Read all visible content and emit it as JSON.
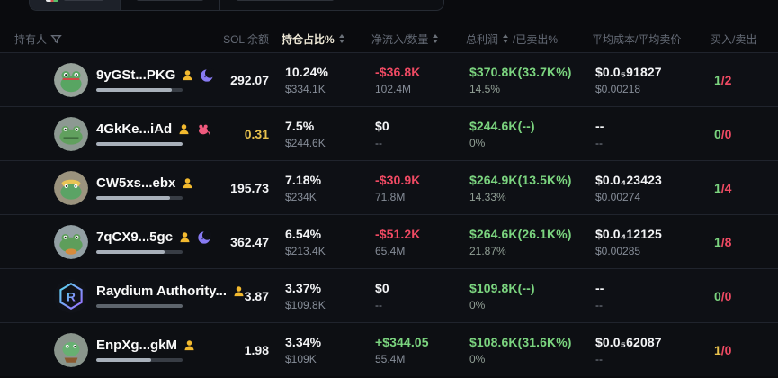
{
  "colors": {
    "green": "#7bd47f",
    "red": "#ef4a63",
    "yellow": "#e7c14d",
    "muted_text": "#868d98",
    "header_text": "#656b76",
    "active_header_text": "#efe9d7",
    "row_bg": "#0e1015",
    "page_bg": "#0a0b0e"
  },
  "columns": {
    "holder": "持有人",
    "sol_balance": "SOL 余额",
    "position_pct": "持仓占比%",
    "netflow_qty": "净流入/数量",
    "profit": "总利润",
    "profit_suffix": "/已卖出%",
    "avg_cost_sell": "平均成本/平均卖价",
    "buy_sell": "买入/卖出"
  },
  "rows": [
    {
      "name": "9yGSt...PKG",
      "sol": "292.07",
      "sol_cls": "plain",
      "pct": "10.24%",
      "pct_sub": "$334.1K",
      "netflow": "-$36.8K",
      "netflow_cls": "neg",
      "qty": "102.4M",
      "profit": "$370.8K(33.7K%)",
      "sold": "14.5%",
      "cost": "$0.0₅91827",
      "avg_sell": "$0.00218",
      "buys": "1",
      "buys_cls": "pos",
      "sells": "/2",
      "bar_fill": 87
    },
    {
      "name": "4GkKe...iAd",
      "sol": "0.31",
      "sol_cls": "warn",
      "pct": "7.5%",
      "pct_sub": "$244.6K",
      "netflow": "$0",
      "netflow_cls": "plain",
      "qty": "--",
      "profit": "$244.6K(--)",
      "sold": "0%",
      "cost": "--",
      "avg_sell": "--",
      "buys": "0",
      "buys_cls": "pos",
      "sells": "/0",
      "bar_fill": 100
    },
    {
      "name": "CW5xs...ebx",
      "sol": "195.73",
      "sol_cls": "plain",
      "pct": "7.18%",
      "pct_sub": "$234K",
      "netflow": "-$30.9K",
      "netflow_cls": "neg",
      "qty": "71.8M",
      "profit": "$264.9K(13.5K%)",
      "sold": "14.33%",
      "cost": "$0.0₄23423",
      "avg_sell": "$0.00274",
      "buys": "1",
      "buys_cls": "pos",
      "sells": "/4",
      "bar_fill": 85
    },
    {
      "name": "7qCX9...5gc",
      "sol": "362.47",
      "sol_cls": "plain",
      "pct": "6.54%",
      "pct_sub": "$213.4K",
      "netflow": "-$51.2K",
      "netflow_cls": "neg",
      "qty": "65.4M",
      "profit": "$264.6K(26.1K%)",
      "sold": "21.87%",
      "cost": "$0.0₄12125",
      "avg_sell": "$0.00285",
      "buys": "1",
      "buys_cls": "pos",
      "sells": "/8",
      "bar_fill": 79
    },
    {
      "name": "Raydium Authority...",
      "sol": "3.87",
      "sol_cls": "plain",
      "pct": "3.37%",
      "pct_sub": "$109.8K",
      "netflow": "$0",
      "netflow_cls": "plain",
      "qty": "--",
      "profit": "$109.8K(--)",
      "sold": "0%",
      "cost": "--",
      "avg_sell": "--",
      "buys": "0",
      "buys_cls": "pos",
      "sells": "/0",
      "bar_fill": 100
    },
    {
      "name": "EnpXg...gkM",
      "sol": "1.98",
      "sol_cls": "plain",
      "pct": "3.34%",
      "pct_sub": "$109K",
      "netflow": "+$344.05",
      "netflow_cls": "pos",
      "qty": "55.4M",
      "profit": "$108.6K(31.6K%)",
      "sold": "0%",
      "cost": "$0.0₅62087",
      "avg_sell": "--",
      "buys": "1",
      "buys_cls": "warn",
      "sells": "/0",
      "bar_fill": 64
    }
  ]
}
